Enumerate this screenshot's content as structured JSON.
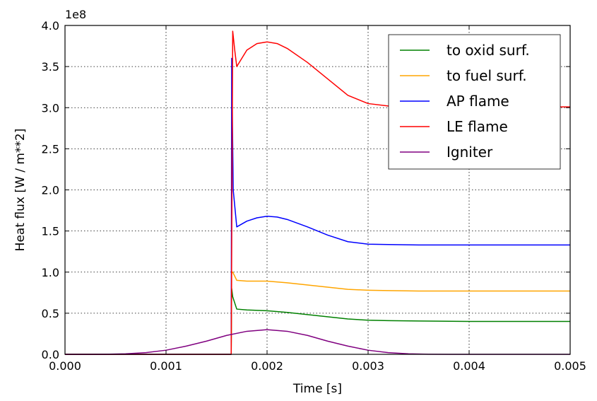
{
  "chart_data": {
    "type": "line",
    "xlabel": "Time [s]",
    "ylabel": "Heat flux [W / m**2]",
    "y_offset_label": "1e8",
    "xlim": [
      0.0,
      0.005
    ],
    "ylim": [
      0.0,
      4.0
    ],
    "x_ticks": [
      "0.000",
      "0.001",
      "0.002",
      "0.003",
      "0.004",
      "0.005"
    ],
    "y_ticks": [
      "0.0",
      "0.5",
      "1.0",
      "1.5",
      "2.0",
      "2.5",
      "3.0",
      "3.5",
      "4.0"
    ],
    "grid": true,
    "legend_position": "top-right",
    "series": [
      {
        "name": "to oxid surf.",
        "color": "#008000",
        "x": [
          0.0,
          0.00162,
          0.001645,
          0.00165,
          0.00166,
          0.0017,
          0.0018,
          0.002,
          0.0022,
          0.0025,
          0.0028,
          0.003,
          0.0032,
          0.0035,
          0.004,
          0.0045,
          0.005
        ],
        "y": [
          0.0,
          0.0,
          0.0,
          0.8,
          0.7,
          0.55,
          0.54,
          0.53,
          0.51,
          0.47,
          0.43,
          0.415,
          0.41,
          0.405,
          0.4,
          0.4,
          0.4
        ]
      },
      {
        "name": "to fuel surf.",
        "color": "#FFA500",
        "x": [
          0.0,
          0.00162,
          0.001645,
          0.00165,
          0.00166,
          0.0017,
          0.0018,
          0.002,
          0.0022,
          0.0025,
          0.0028,
          0.003,
          0.0032,
          0.0035,
          0.004,
          0.0045,
          0.005
        ],
        "y": [
          0.0,
          0.0,
          0.0,
          1.0,
          1.0,
          0.9,
          0.89,
          0.89,
          0.87,
          0.83,
          0.79,
          0.78,
          0.775,
          0.77,
          0.77,
          0.77,
          0.77
        ]
      },
      {
        "name": "AP flame",
        "color": "#0000FF",
        "x": [
          0.0,
          0.00162,
          0.001645,
          0.00165,
          0.001665,
          0.0017,
          0.0018,
          0.0019,
          0.002,
          0.0021,
          0.0022,
          0.0024,
          0.0026,
          0.0028,
          0.003,
          0.0032,
          0.0035,
          0.004,
          0.0045,
          0.005
        ],
        "y": [
          0.0,
          0.0,
          0.0,
          3.6,
          2.0,
          1.55,
          1.62,
          1.66,
          1.68,
          1.67,
          1.64,
          1.55,
          1.45,
          1.37,
          1.34,
          1.335,
          1.33,
          1.33,
          1.33,
          1.33
        ]
      },
      {
        "name": "LE flame",
        "color": "#FF0000",
        "x": [
          0.0,
          0.00162,
          0.001645,
          0.00166,
          0.00168,
          0.0017,
          0.00175,
          0.0018,
          0.0019,
          0.002,
          0.0021,
          0.0022,
          0.0024,
          0.0026,
          0.0028,
          0.003,
          0.0032,
          0.0035,
          0.004,
          0.0045,
          0.005
        ],
        "y": [
          0.0,
          0.0,
          0.0,
          3.93,
          3.7,
          3.5,
          3.6,
          3.7,
          3.78,
          3.8,
          3.78,
          3.72,
          3.55,
          3.35,
          3.15,
          3.05,
          3.02,
          3.01,
          3.01,
          3.01,
          3.01
        ]
      },
      {
        "name": "Igniter",
        "color": "#800080",
        "x": [
          0.0,
          0.0002,
          0.0004,
          0.0006,
          0.0008,
          0.001,
          0.0012,
          0.0014,
          0.0016,
          0.0018,
          0.002,
          0.0022,
          0.0024,
          0.0026,
          0.0028,
          0.003,
          0.0032,
          0.0034,
          0.0036,
          0.004,
          0.005
        ],
        "y": [
          0.0,
          0.0,
          0.001,
          0.006,
          0.02,
          0.05,
          0.1,
          0.16,
          0.23,
          0.28,
          0.3,
          0.28,
          0.23,
          0.16,
          0.1,
          0.05,
          0.02,
          0.006,
          0.001,
          0.0,
          0.0
        ]
      }
    ]
  }
}
